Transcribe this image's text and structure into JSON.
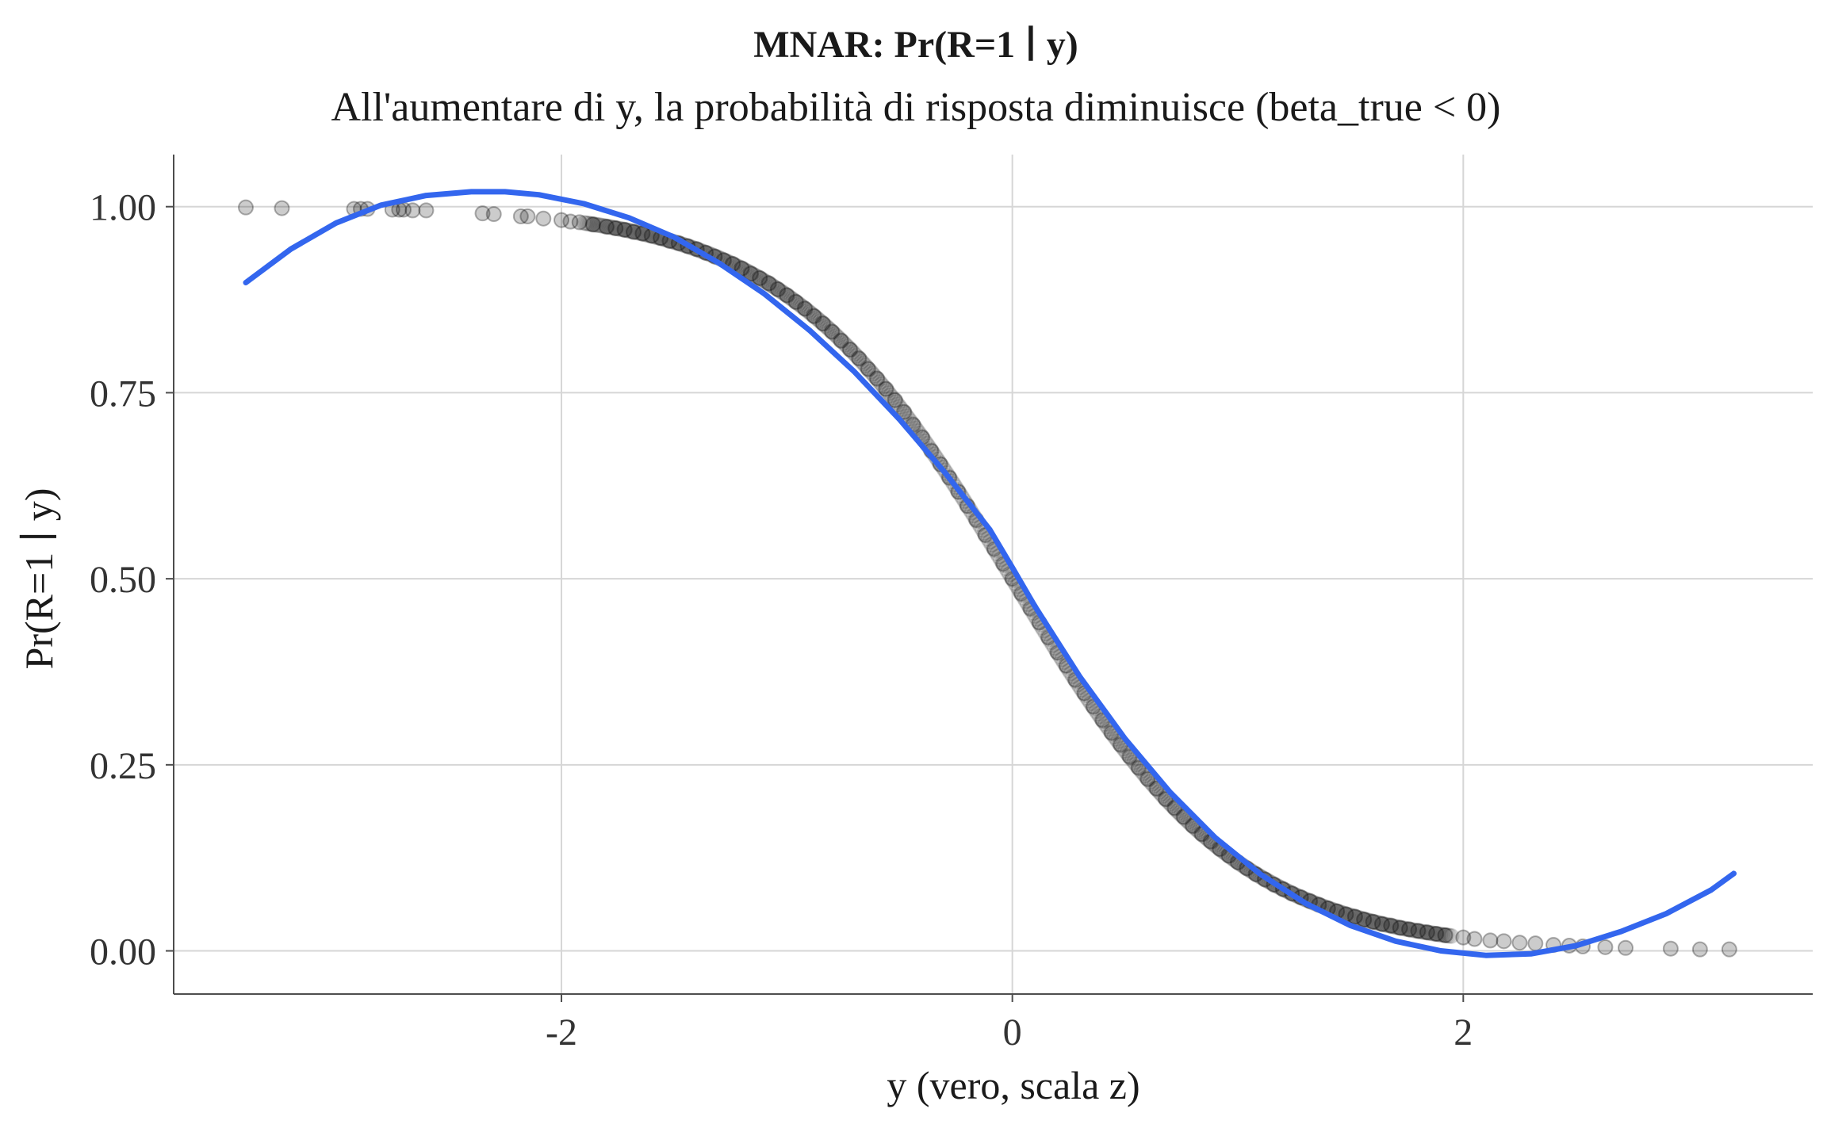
{
  "chart_data": {
    "type": "scatter",
    "title": "MNAR: Pr(R=1 ∣ y)",
    "subtitle": "All'aumentare di y, la probabilità di risposta diminuisce (beta_true < 0)",
    "xlabel": "y (vero, scala z)",
    "ylabel": "Pr(R=1 ∣ y)",
    "xlim": [
      -3.72,
      3.55
    ],
    "ylim": [
      -0.058,
      1.07
    ],
    "xticks": [
      -2,
      0,
      2
    ],
    "xtick_labels": [
      "-2",
      "0",
      "2"
    ],
    "yticks": [
      0.0,
      0.25,
      0.5,
      0.75,
      1.0
    ],
    "ytick_labels": [
      "0.00",
      "0.25",
      "0.50",
      "0.75",
      "1.00"
    ],
    "grid": true,
    "legend": "none",
    "colors": {
      "points": "#000000",
      "curve": "#3366ee",
      "grid": "#d6d6d6",
      "axis": "#4d4d4d"
    },
    "point_model": {
      "description_formula": "1/(1+exp(2*y))"
    },
    "points": [
      {
        "x": -3.4,
        "y": 0.999
      },
      {
        "x": -3.24,
        "y": 0.998
      },
      {
        "x": -2.92,
        "y": 0.997
      },
      {
        "x": -2.89,
        "y": 0.997
      },
      {
        "x": -2.86,
        "y": 0.997
      },
      {
        "x": -2.75,
        "y": 0.996
      },
      {
        "x": -2.72,
        "y": 0.996
      },
      {
        "x": -2.7,
        "y": 0.996
      },
      {
        "x": -2.66,
        "y": 0.995
      },
      {
        "x": -2.6,
        "y": 0.995
      },
      {
        "x": -2.35,
        "y": 0.991
      },
      {
        "x": -2.3,
        "y": 0.99
      },
      {
        "x": -2.18,
        "y": 0.987
      },
      {
        "x": -2.15,
        "y": 0.987
      },
      {
        "x": -2.08,
        "y": 0.984
      },
      {
        "x": -2.0,
        "y": 0.982
      },
      {
        "x": -1.96,
        "y": 0.98
      },
      {
        "x": -1.92,
        "y": 0.979
      },
      {
        "x": -1.86,
        "y": 0.976
      },
      {
        "x": -1.8,
        "y": 0.973
      },
      {
        "x": -1.76,
        "y": 0.971
      },
      {
        "x": -1.72,
        "y": 0.969
      },
      {
        "x": -1.68,
        "y": 0.966
      },
      {
        "x": -1.64,
        "y": 0.964
      },
      {
        "x": -1.6,
        "y": 0.961
      },
      {
        "x": -1.56,
        "y": 0.958
      },
      {
        "x": -1.52,
        "y": 0.954
      },
      {
        "x": -1.48,
        "y": 0.951
      },
      {
        "x": -1.44,
        "y": 0.947
      },
      {
        "x": -1.4,
        "y": 0.943
      },
      {
        "x": -1.36,
        "y": 0.938
      },
      {
        "x": -1.32,
        "y": 0.933
      },
      {
        "x": -1.28,
        "y": 0.928
      },
      {
        "x": -1.24,
        "y": 0.923
      },
      {
        "x": -1.2,
        "y": 0.917
      },
      {
        "x": -1.16,
        "y": 0.91
      },
      {
        "x": -1.12,
        "y": 0.904
      },
      {
        "x": -1.08,
        "y": 0.897
      },
      {
        "x": -1.04,
        "y": 0.889
      },
      {
        "x": -1.0,
        "y": 0.881
      },
      {
        "x": -0.96,
        "y": 0.872
      },
      {
        "x": -0.92,
        "y": 0.863
      },
      {
        "x": -0.88,
        "y": 0.853
      },
      {
        "x": -0.84,
        "y": 0.843
      },
      {
        "x": -0.8,
        "y": 0.832
      },
      {
        "x": -0.76,
        "y": 0.82
      },
      {
        "x": -0.72,
        "y": 0.808
      },
      {
        "x": -0.68,
        "y": 0.796
      },
      {
        "x": -0.64,
        "y": 0.782
      },
      {
        "x": -0.6,
        "y": 0.769
      },
      {
        "x": -0.56,
        "y": 0.755
      },
      {
        "x": -0.52,
        "y": 0.74
      },
      {
        "x": -0.48,
        "y": 0.724
      },
      {
        "x": -0.44,
        "y": 0.707
      },
      {
        "x": -0.4,
        "y": 0.69
      },
      {
        "x": -0.36,
        "y": 0.672
      },
      {
        "x": -0.32,
        "y": 0.654
      },
      {
        "x": -0.28,
        "y": 0.636
      },
      {
        "x": -0.24,
        "y": 0.617
      },
      {
        "x": -0.2,
        "y": 0.598
      },
      {
        "x": -0.16,
        "y": 0.579
      },
      {
        "x": -0.12,
        "y": 0.559
      },
      {
        "x": -0.08,
        "y": 0.54
      },
      {
        "x": -0.04,
        "y": 0.52
      },
      {
        "x": 0.0,
        "y": 0.5
      },
      {
        "x": 0.04,
        "y": 0.48
      },
      {
        "x": 0.08,
        "y": 0.46
      },
      {
        "x": 0.12,
        "y": 0.441
      },
      {
        "x": 0.16,
        "y": 0.421
      },
      {
        "x": 0.2,
        "y": 0.401
      },
      {
        "x": 0.24,
        "y": 0.383
      },
      {
        "x": 0.28,
        "y": 0.364
      },
      {
        "x": 0.32,
        "y": 0.346
      },
      {
        "x": 0.36,
        "y": 0.328
      },
      {
        "x": 0.4,
        "y": 0.31
      },
      {
        "x": 0.44,
        "y": 0.293
      },
      {
        "x": 0.48,
        "y": 0.277
      },
      {
        "x": 0.52,
        "y": 0.261
      },
      {
        "x": 0.56,
        "y": 0.246
      },
      {
        "x": 0.6,
        "y": 0.231
      },
      {
        "x": 0.64,
        "y": 0.218
      },
      {
        "x": 0.68,
        "y": 0.204
      },
      {
        "x": 0.72,
        "y": 0.192
      },
      {
        "x": 0.76,
        "y": 0.18
      },
      {
        "x": 0.8,
        "y": 0.168
      },
      {
        "x": 0.84,
        "y": 0.157
      },
      {
        "x": 0.88,
        "y": 0.147
      },
      {
        "x": 0.92,
        "y": 0.137
      },
      {
        "x": 0.96,
        "y": 0.128
      },
      {
        "x": 1.0,
        "y": 0.119
      },
      {
        "x": 1.04,
        "y": 0.111
      },
      {
        "x": 1.08,
        "y": 0.103
      },
      {
        "x": 1.12,
        "y": 0.096
      },
      {
        "x": 1.16,
        "y": 0.089
      },
      {
        "x": 1.2,
        "y": 0.083
      },
      {
        "x": 1.24,
        "y": 0.077
      },
      {
        "x": 1.28,
        "y": 0.072
      },
      {
        "x": 1.32,
        "y": 0.067
      },
      {
        "x": 1.36,
        "y": 0.062
      },
      {
        "x": 1.4,
        "y": 0.057
      },
      {
        "x": 1.44,
        "y": 0.053
      },
      {
        "x": 1.48,
        "y": 0.049
      },
      {
        "x": 1.52,
        "y": 0.046
      },
      {
        "x": 1.56,
        "y": 0.042
      },
      {
        "x": 1.6,
        "y": 0.039
      },
      {
        "x": 1.64,
        "y": 0.036
      },
      {
        "x": 1.68,
        "y": 0.034
      },
      {
        "x": 1.72,
        "y": 0.031
      },
      {
        "x": 1.76,
        "y": 0.029
      },
      {
        "x": 1.8,
        "y": 0.027
      },
      {
        "x": 1.84,
        "y": 0.025
      },
      {
        "x": 1.88,
        "y": 0.023
      },
      {
        "x": 1.92,
        "y": 0.021
      },
      {
        "x": 2.0,
        "y": 0.018
      },
      {
        "x": 2.05,
        "y": 0.016
      },
      {
        "x": 2.12,
        "y": 0.014
      },
      {
        "x": 2.18,
        "y": 0.013
      },
      {
        "x": 2.25,
        "y": 0.011
      },
      {
        "x": 2.32,
        "y": 0.01
      },
      {
        "x": 2.4,
        "y": 0.008
      },
      {
        "x": 2.47,
        "y": 0.007
      },
      {
        "x": 2.53,
        "y": 0.006
      },
      {
        "x": 2.63,
        "y": 0.005
      },
      {
        "x": 2.72,
        "y": 0.004
      },
      {
        "x": 2.92,
        "y": 0.003
      },
      {
        "x": 3.05,
        "y": 0.002
      },
      {
        "x": 3.18,
        "y": 0.002
      }
    ],
    "curve": [
      {
        "x": -3.4,
        "y": 0.898
      },
      {
        "x": -3.2,
        "y": 0.943
      },
      {
        "x": -3.0,
        "y": 0.978
      },
      {
        "x": -2.8,
        "y": 1.002
      },
      {
        "x": -2.6,
        "y": 1.015
      },
      {
        "x": -2.4,
        "y": 1.02
      },
      {
        "x": -2.25,
        "y": 1.02
      },
      {
        "x": -2.1,
        "y": 1.016
      },
      {
        "x": -1.9,
        "y": 1.004
      },
      {
        "x": -1.7,
        "y": 0.985
      },
      {
        "x": -1.5,
        "y": 0.959
      },
      {
        "x": -1.3,
        "y": 0.924
      },
      {
        "x": -1.1,
        "y": 0.883
      },
      {
        "x": -0.9,
        "y": 0.834
      },
      {
        "x": -0.7,
        "y": 0.778
      },
      {
        "x": -0.5,
        "y": 0.714
      },
      {
        "x": -0.3,
        "y": 0.643
      },
      {
        "x": -0.1,
        "y": 0.566
      },
      {
        "x": 0.0,
        "y": 0.515
      },
      {
        "x": 0.1,
        "y": 0.463
      },
      {
        "x": 0.3,
        "y": 0.368
      },
      {
        "x": 0.5,
        "y": 0.285
      },
      {
        "x": 0.7,
        "y": 0.213
      },
      {
        "x": 0.9,
        "y": 0.152
      },
      {
        "x": 1.1,
        "y": 0.103
      },
      {
        "x": 1.3,
        "y": 0.064
      },
      {
        "x": 1.5,
        "y": 0.034
      },
      {
        "x": 1.7,
        "y": 0.013
      },
      {
        "x": 1.9,
        "y": 0.0
      },
      {
        "x": 2.1,
        "y": -0.006
      },
      {
        "x": 2.3,
        "y": -0.004
      },
      {
        "x": 2.5,
        "y": 0.007
      },
      {
        "x": 2.7,
        "y": 0.026
      },
      {
        "x": 2.9,
        "y": 0.05
      },
      {
        "x": 3.1,
        "y": 0.082
      },
      {
        "x": 3.2,
        "y": 0.104
      }
    ]
  }
}
